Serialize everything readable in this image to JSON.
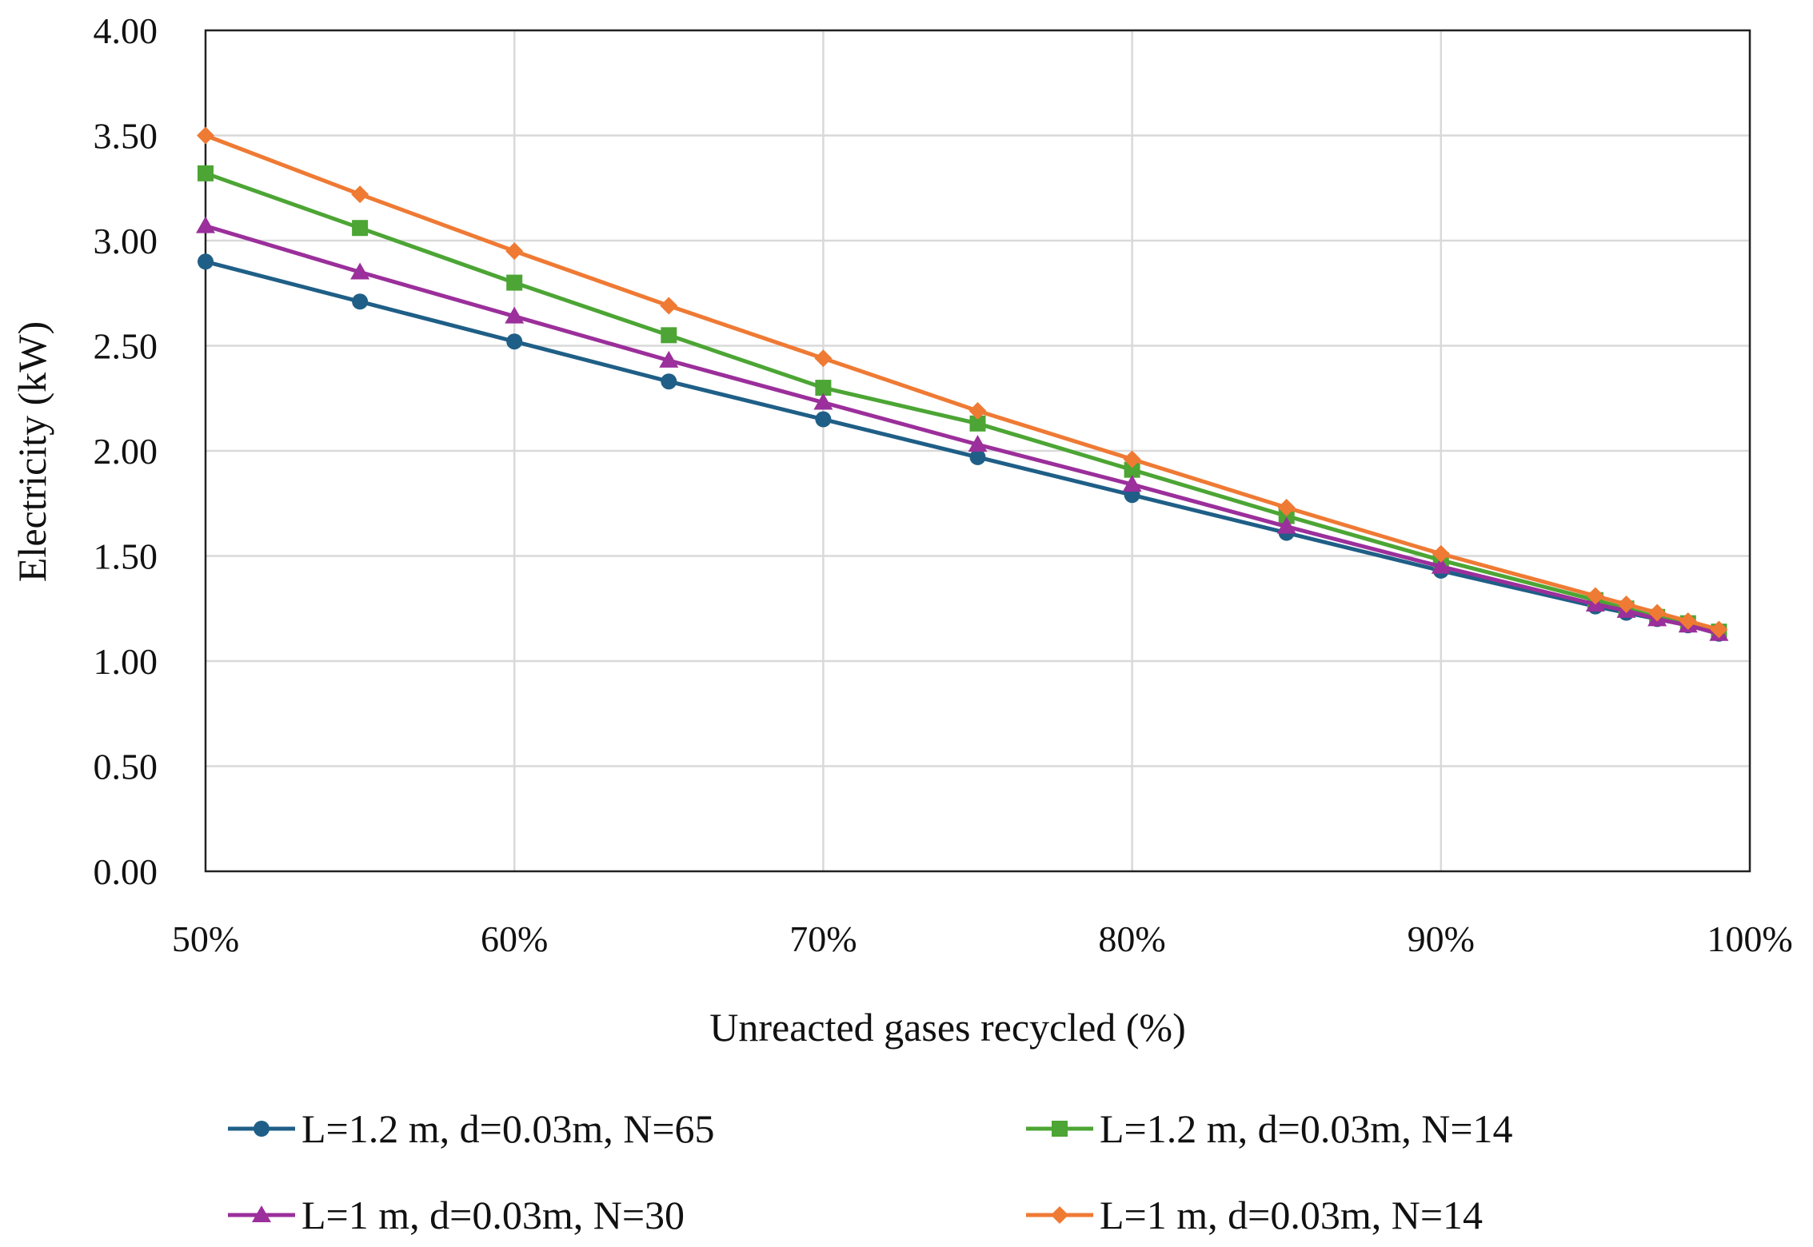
{
  "chart_data": {
    "type": "line",
    "title": "",
    "xlabel": "Unreacted gases recycled (%)",
    "ylabel": "Electricity (kW)",
    "xlim": [
      50,
      100
    ],
    "ylim": [
      0,
      4
    ],
    "x_ticks": [
      50,
      60,
      70,
      80,
      90,
      100
    ],
    "x_tick_labels": [
      "50%",
      "60%",
      "70%",
      "80%",
      "90%",
      "100%"
    ],
    "y_ticks": [
      0,
      0.5,
      1,
      1.5,
      2,
      2.5,
      3,
      3.5,
      4
    ],
    "y_tick_labels": [
      "0.00",
      "0.50",
      "1.00",
      "1.50",
      "2.00",
      "2.50",
      "3.00",
      "3.50",
      "4.00"
    ],
    "grid": true,
    "legend_position": "bottom",
    "x": [
      50,
      55,
      60,
      65,
      70,
      75,
      80,
      85,
      90,
      95,
      96,
      97,
      98,
      99
    ],
    "series": [
      {
        "name": "L=1.2 m, d=0.03m, N=65",
        "color": "#1f5f87",
        "marker": "circle",
        "values": [
          2.9,
          2.71,
          2.52,
          2.33,
          2.15,
          1.97,
          1.79,
          1.61,
          1.43,
          1.26,
          1.23,
          1.2,
          1.17,
          1.13
        ]
      },
      {
        "name": "L=1.2 m, d=0.03m, N=14",
        "color": "#4ca534",
        "marker": "square",
        "values": [
          3.32,
          3.06,
          2.8,
          2.55,
          2.3,
          2.13,
          1.91,
          1.69,
          1.48,
          1.29,
          1.25,
          1.21,
          1.18,
          1.14
        ]
      },
      {
        "name": "L=1 m, d=0.03m, N=30",
        "color": "#9b2f9b",
        "marker": "triangle",
        "values": [
          3.07,
          2.85,
          2.64,
          2.43,
          2.23,
          2.03,
          1.84,
          1.64,
          1.45,
          1.27,
          1.24,
          1.2,
          1.17,
          1.13
        ]
      },
      {
        "name": "L=1 m, d=0.03m, N=14",
        "color": "#ef7a34",
        "marker": "diamond",
        "values": [
          3.5,
          3.22,
          2.95,
          2.69,
          2.44,
          2.19,
          1.96,
          1.73,
          1.51,
          1.31,
          1.27,
          1.23,
          1.19,
          1.15
        ]
      }
    ]
  }
}
